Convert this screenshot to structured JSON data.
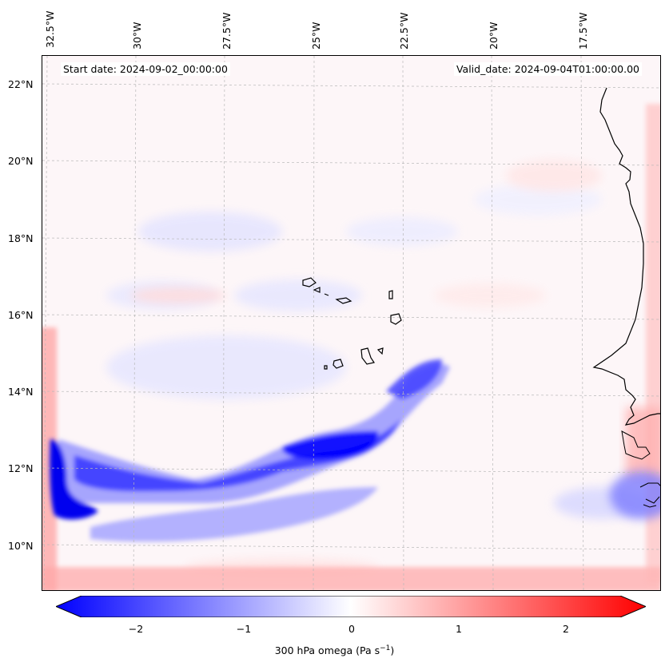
{
  "header": {
    "start_date": "Start date: 2024-09-02_00:00:00",
    "valid_date": "Valid_date: 2024-09-04T01:00:00.00"
  },
  "map": {
    "longitude_labels": [
      "32.5°W",
      "30°W",
      "27.5°W",
      "25°W",
      "22.5°W",
      "20°W",
      "17.5°W"
    ],
    "latitude_labels": [
      "22°N",
      "20°N",
      "18°N",
      "16°N",
      "14°N",
      "12°N",
      "10°N"
    ],
    "colors": {
      "ascent_strong": "#0000ff",
      "ascent_weak": "#c8c8ff",
      "descent_weak": "#ffd0d0",
      "descent_strong": "#ff2020",
      "coastline": "#000000",
      "gridline": "#b0b0b0"
    }
  },
  "colorbar": {
    "tick_labels": [
      "−2",
      "−1",
      "0",
      "1",
      "2"
    ],
    "label_text": "300 hPa omega (Pa s",
    "label_exponent": "−1",
    "label_close": ")",
    "vmin": -2.7,
    "vmax": 2.7,
    "low_color": "#0000ff",
    "mid_color": "#ffffff",
    "high_color": "#ff0000"
  }
}
